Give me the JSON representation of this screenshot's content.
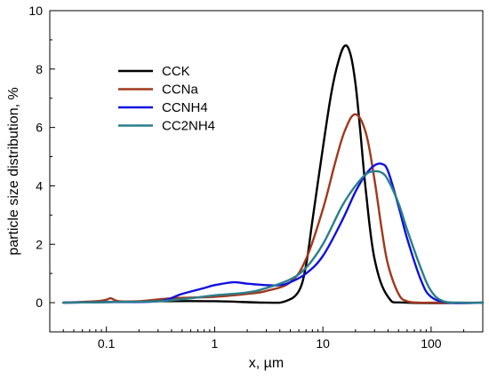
{
  "chart_data": {
    "type": "line",
    "title": "",
    "xlabel": "x, µm",
    "ylabel": "particle size distribution, %",
    "xscale": "log",
    "xlim": [
      0.03,
      300
    ],
    "ylim": [
      -1,
      10
    ],
    "xticks": [
      {
        "value": 0.1,
        "label": "0.1"
      },
      {
        "value": 1,
        "label": "1"
      },
      {
        "value": 10,
        "label": "10"
      },
      {
        "value": 100,
        "label": "100"
      }
    ],
    "yticks": [
      {
        "value": 0,
        "label": "0"
      },
      {
        "value": 2,
        "label": "2"
      },
      {
        "value": 4,
        "label": "4"
      },
      {
        "value": 6,
        "label": "6"
      },
      {
        "value": 8,
        "label": "8"
      },
      {
        "value": 10,
        "label": "10"
      }
    ],
    "grid": false,
    "legend_position": "top-left",
    "series": [
      {
        "name": "CCK",
        "color": "#000000",
        "x": [
          0.04,
          0.1,
          0.3,
          1,
          3,
          4.5,
          6,
          7,
          8,
          10,
          12,
          14,
          16,
          18,
          20,
          22,
          25,
          30,
          40,
          60,
          300
        ],
        "y": [
          0,
          0.02,
          0.05,
          0.05,
          0,
          0.05,
          0.4,
          1.3,
          2.8,
          5.3,
          7.2,
          8.3,
          8.8,
          8.5,
          7.5,
          6,
          3.8,
          1.5,
          0.2,
          0,
          0
        ]
      },
      {
        "name": "CCNa",
        "color": "#a0381c",
        "x": [
          0.04,
          0.08,
          0.1,
          0.11,
          0.13,
          0.2,
          0.4,
          1,
          2,
          3,
          5,
          7,
          10,
          13,
          16,
          20,
          25,
          30,
          35,
          40,
          50,
          60,
          80,
          100,
          300
        ],
        "y": [
          0,
          0.05,
          0.1,
          0.15,
          0.05,
          0.05,
          0.15,
          0.2,
          0.3,
          0.4,
          0.7,
          1.5,
          3.2,
          4.8,
          5.9,
          6.45,
          5.8,
          4.2,
          2.5,
          1.3,
          0.3,
          0.05,
          0,
          0,
          0
        ]
      },
      {
        "name": "CCNH4",
        "color": "#1010e0",
        "x": [
          0.04,
          0.1,
          0.3,
          0.5,
          0.8,
          1,
          1.5,
          2,
          3,
          4,
          5,
          7,
          10,
          15,
          20,
          25,
          30,
          35,
          40,
          50,
          60,
          80,
          100,
          150,
          300
        ],
        "y": [
          0,
          0.02,
          0.05,
          0.3,
          0.5,
          0.6,
          0.7,
          0.65,
          0.6,
          0.6,
          0.7,
          1.0,
          1.6,
          2.8,
          3.8,
          4.4,
          4.7,
          4.75,
          4.5,
          3.3,
          2.2,
          0.8,
          0.2,
          0,
          0
        ]
      },
      {
        "name": "CC2NH4",
        "color": "#2a7f8a",
        "x": [
          0.04,
          0.1,
          0.3,
          0.6,
          1,
          2,
          3,
          5,
          7,
          10,
          15,
          20,
          25,
          30,
          35,
          40,
          50,
          60,
          80,
          100,
          130,
          200,
          300
        ],
        "y": [
          0,
          0.02,
          0.05,
          0.15,
          0.25,
          0.35,
          0.5,
          0.8,
          1.2,
          2.0,
          3.3,
          4.0,
          4.4,
          4.5,
          4.45,
          4.2,
          3.4,
          2.5,
          1.2,
          0.4,
          0.05,
          0,
          0
        ]
      }
    ]
  }
}
